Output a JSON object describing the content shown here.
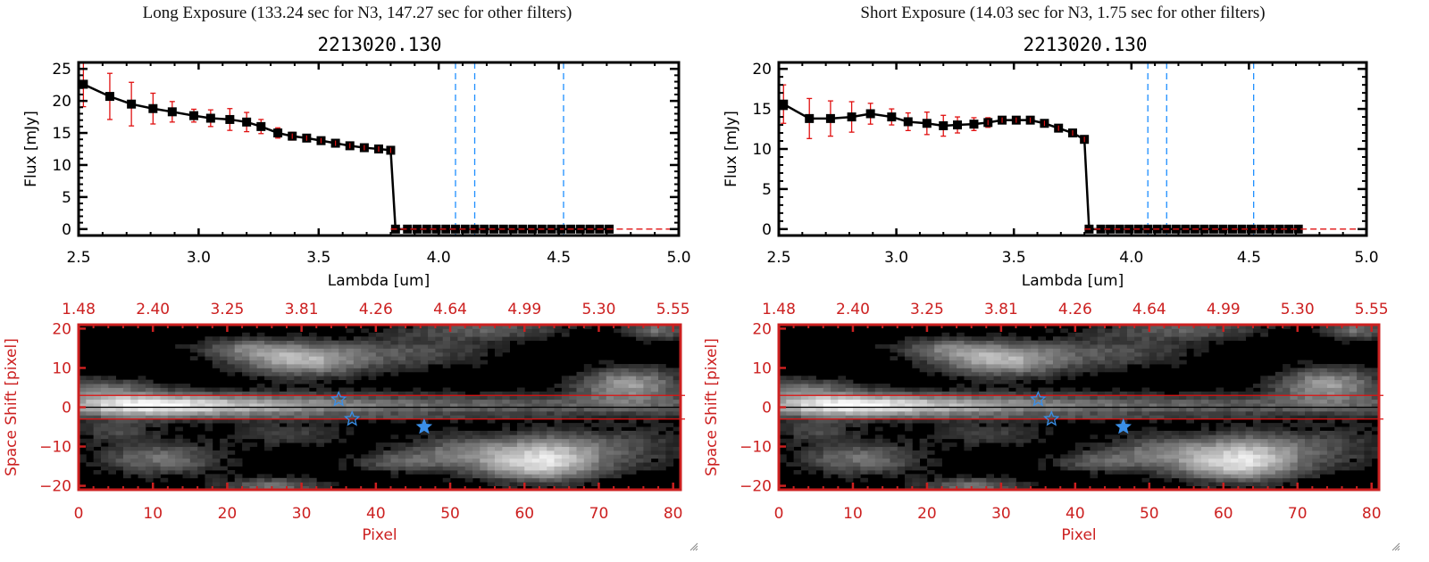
{
  "panels": [
    {
      "title": "Long Exposure (133.24 sec for N3, 147.27 sec for other filters)",
      "object_id": "2213020.130"
    },
    {
      "title": "Short Exposure (14.03 sec for N3, 1.75 sec for other filters)",
      "object_id": "2213020.130"
    }
  ],
  "chart_data": [
    {
      "type": "line",
      "name": "long-exposure-spectrum",
      "title": "2213020.130",
      "xlabel": "Lambda [um]",
      "ylabel": "Flux [mJy]",
      "xlim": [
        2.5,
        5.0
      ],
      "ylim": [
        -1,
        26
      ],
      "xticks": [
        "2.5",
        "3.0",
        "3.5",
        "4.0",
        "4.5",
        "5.0"
      ],
      "yticks": [
        "0",
        "5",
        "10",
        "15",
        "20",
        "25"
      ],
      "ytick_values": [
        0,
        5,
        10,
        15,
        20,
        25
      ],
      "x": [
        2.52,
        2.63,
        2.72,
        2.81,
        2.89,
        2.98,
        3.05,
        3.13,
        3.2,
        3.26,
        3.33,
        3.39,
        3.45,
        3.51,
        3.57,
        3.63,
        3.69,
        3.75,
        3.8,
        3.82,
        3.87,
        3.91,
        3.95,
        3.99,
        4.03,
        4.07,
        4.11,
        4.15,
        4.19,
        4.23,
        4.27,
        4.31,
        4.35,
        4.39,
        4.43,
        4.47,
        4.51,
        4.55,
        4.59,
        4.63,
        4.67,
        4.71
      ],
      "values": [
        22.6,
        20.7,
        19.5,
        18.8,
        18.3,
        17.7,
        17.3,
        17.1,
        16.7,
        16.0,
        15.0,
        14.5,
        14.2,
        13.8,
        13.4,
        13.0,
        12.7,
        12.5,
        12.3,
        0,
        0,
        0,
        0,
        0,
        0,
        0,
        0,
        0,
        0,
        0,
        0,
        0,
        0,
        0,
        0,
        0,
        0,
        0,
        0,
        0,
        0,
        0
      ],
      "errors": [
        3.5,
        3.6,
        3.4,
        2.4,
        1.6,
        1.0,
        1.3,
        1.7,
        1.5,
        1.1,
        0.8,
        0.6,
        0.3,
        0.3,
        0.3,
        0.3,
        0.2,
        0.2,
        0.2,
        0,
        0,
        0,
        0,
        0,
        0,
        0,
        0,
        0,
        0,
        0,
        0,
        0,
        0,
        0,
        0,
        0,
        0,
        0,
        0,
        0,
        0,
        0
      ],
      "vlines": [
        4.07,
        4.15,
        4.52
      ],
      "hline": 0,
      "colors": {
        "line": "#000000",
        "error": "#e01010",
        "vline": "#1e8fff",
        "hline": "#e01010"
      }
    },
    {
      "type": "line",
      "name": "short-exposure-spectrum",
      "title": "2213020.130",
      "xlabel": "Lambda [um]",
      "ylabel": "Flux [mJy]",
      "xlim": [
        2.5,
        5.0
      ],
      "ylim": [
        -0.8,
        20.8
      ],
      "xticks": [
        "2.5",
        "3.0",
        "3.5",
        "4.0",
        "4.5",
        "5.0"
      ],
      "yticks": [
        "0",
        "5",
        "10",
        "15",
        "20"
      ],
      "ytick_values": [
        0,
        5,
        10,
        15,
        20
      ],
      "x": [
        2.52,
        2.63,
        2.72,
        2.81,
        2.89,
        2.98,
        3.05,
        3.13,
        3.2,
        3.26,
        3.33,
        3.39,
        3.45,
        3.51,
        3.57,
        3.63,
        3.69,
        3.75,
        3.8,
        3.82,
        3.87,
        3.91,
        3.95,
        3.99,
        4.03,
        4.07,
        4.11,
        4.15,
        4.19,
        4.23,
        4.27,
        4.31,
        4.35,
        4.39,
        4.43,
        4.47,
        4.51,
        4.55,
        4.59,
        4.63,
        4.67,
        4.71
      ],
      "values": [
        15.6,
        13.8,
        13.8,
        14.0,
        14.4,
        14.0,
        13.4,
        13.2,
        12.9,
        13.0,
        13.1,
        13.3,
        13.6,
        13.6,
        13.6,
        13.2,
        12.6,
        12.0,
        11.2,
        0,
        0,
        0,
        0,
        0,
        0,
        0,
        0,
        0,
        0,
        0,
        0,
        0,
        0,
        0,
        0,
        0,
        0,
        0,
        0,
        0,
        0,
        0
      ],
      "errors": [
        2.4,
        2.5,
        2.2,
        1.9,
        1.3,
        1.0,
        1.1,
        1.4,
        1.3,
        1.0,
        0.8,
        0.6,
        0.4,
        0.4,
        0.4,
        0.3,
        0.3,
        0.3,
        0.3,
        0,
        0,
        0,
        0,
        0,
        0,
        0,
        0,
        0,
        0,
        0,
        0,
        0,
        0,
        0,
        0,
        0,
        0,
        0,
        0,
        0,
        0,
        0
      ],
      "vlines": [
        4.07,
        4.15,
        4.52
      ],
      "hline": 0,
      "colors": {
        "line": "#000000",
        "error": "#e01010",
        "vline": "#1e8fff",
        "hline": "#e01010"
      }
    },
    {
      "type": "heatmap",
      "name": "long-exposure-2d-image",
      "xlabel": "Pixel",
      "ylabel": "Space Shift [pixel]",
      "xlim": [
        0,
        81
      ],
      "ylim": [
        -21,
        21
      ],
      "xticks": [
        "0",
        "10",
        "20",
        "30",
        "40",
        "50",
        "60",
        "70",
        "80"
      ],
      "xtick_values": [
        0,
        10,
        20,
        30,
        40,
        50,
        60,
        70,
        80
      ],
      "yticks": [
        "20",
        "10",
        "0",
        "-10",
        "-20"
      ],
      "ytick_values": [
        20,
        10,
        0,
        -10,
        -20
      ],
      "top_xticks": [
        "1.48",
        "2.40",
        "3.25",
        "3.81",
        "4.26",
        "4.64",
        "4.99",
        "5.30",
        "5.55"
      ],
      "aperture": [
        -3,
        3
      ],
      "markers": [
        {
          "x": 35,
          "y": 2,
          "style": "open-star"
        },
        {
          "x": 36.8,
          "y": -3,
          "style": "open-star"
        },
        {
          "x": 46.5,
          "y": -5,
          "style": "filled-star"
        }
      ],
      "blobs": [
        {
          "x": 10,
          "y": 0.5,
          "sx": 10,
          "sy": 2.2,
          "v": 1.0,
          "tail": 35
        },
        {
          "x": 3,
          "y": 5,
          "sx": 5,
          "sy": 2,
          "v": 0.35
        },
        {
          "x": 30,
          "y": 12,
          "sx": 6,
          "sy": 3,
          "v": 0.65
        },
        {
          "x": 22,
          "y": 15,
          "sx": 5,
          "sy": 2,
          "v": 0.35
        },
        {
          "x": 45,
          "y": 14,
          "sx": 8,
          "sy": 3,
          "v": 0.3
        },
        {
          "x": 55,
          "y": 20,
          "sx": 8,
          "sy": 2,
          "v": 0.35
        },
        {
          "x": 78,
          "y": 20,
          "sx": 3,
          "sy": 2,
          "v": 0.45
        },
        {
          "x": 74,
          "y": 6,
          "sx": 5,
          "sy": 3,
          "v": 0.6
        },
        {
          "x": 11,
          "y": -13,
          "sx": 6,
          "sy": 3,
          "v": 0.45
        },
        {
          "x": 5,
          "y": -6,
          "sx": 4,
          "sy": 2,
          "v": 0.25
        },
        {
          "x": 28,
          "y": -7,
          "sx": 6,
          "sy": 2,
          "v": 0.25
        },
        {
          "x": 43,
          "y": -14,
          "sx": 5,
          "sy": 2,
          "v": 0.3
        },
        {
          "x": 52,
          "y": -11,
          "sx": 6,
          "sy": 3,
          "v": 0.4
        },
        {
          "x": 62,
          "y": -15,
          "sx": 6,
          "sy": 3,
          "v": 0.7
        },
        {
          "x": 64,
          "y": -10,
          "sx": 5,
          "sy": 3,
          "v": 0.45
        },
        {
          "x": 26,
          "y": -20,
          "sx": 5,
          "sy": 1.5,
          "v": 0.45
        },
        {
          "x": 75,
          "y": -10,
          "sx": 5,
          "sy": 4,
          "v": 0.25
        }
      ],
      "colors": {
        "axis": "#cc2020",
        "marker": "#3a8fe8",
        "aperture": "#e01010"
      }
    }
  ],
  "icons": {
    "resize_handle": "resize-grip-icon"
  }
}
